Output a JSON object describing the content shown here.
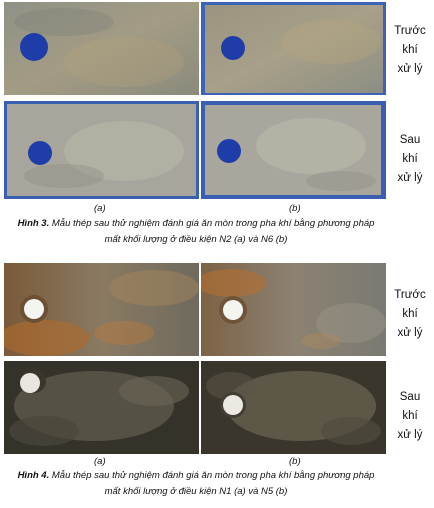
{
  "figure3": {
    "side_top": [
      "Trước",
      "khí",
      "xử lý"
    ],
    "side_bottom": [
      "Sau",
      "khí",
      "xử lý"
    ],
    "sub_a": "(a)",
    "sub_b": "(b)",
    "caption_label": "Hình 3.",
    "caption_line1": " Mẫu thép sau thử nghiệm đánh giá ăn mòn trong pha khí bằng phương pháp",
    "caption_line2": "mất khối lượng ở điều kiện N2 (a) và N6 (b)"
  },
  "figure4": {
    "side_top": [
      "Trước",
      "khí",
      "xử lý"
    ],
    "side_bottom": [
      "Sau",
      "khí",
      "xử lý"
    ],
    "sub_a": "(a)",
    "sub_b": "(b)",
    "caption_label": "Hình 4.",
    "caption_line1": " Mẫu thép sau thử nghiệm đánh giá ăn mòn trong pha khí bằng phương pháp",
    "caption_line2": "mất khối lượng ở điều kiện N1 (a) và N5 (b)"
  },
  "colors": {
    "blue_hole": "#1f3da8",
    "grey_steel": "#9c9a8e",
    "rust": "#a8642c",
    "dark_steel": "#2f2c24"
  }
}
